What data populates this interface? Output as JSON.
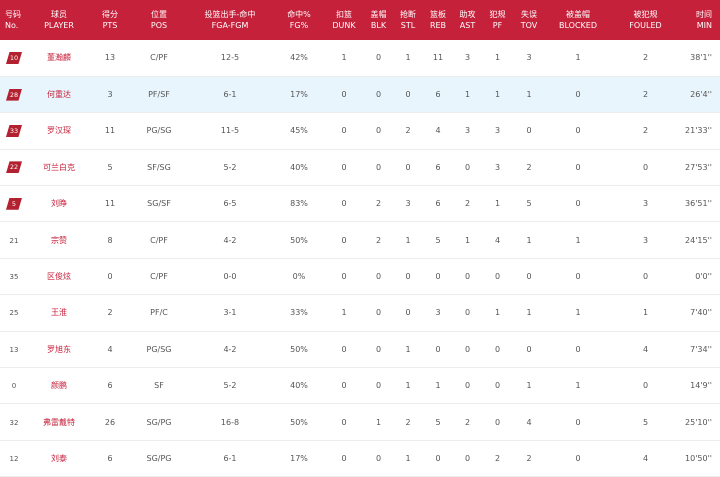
{
  "header": [
    {
      "zh": "号码",
      "en": "No."
    },
    {
      "zh": "球员",
      "en": "PLAYER"
    },
    {
      "zh": "得分",
      "en": "PTS"
    },
    {
      "zh": "位置",
      "en": "POS"
    },
    {
      "zh": "投篮出手-命中",
      "en": "FGA-FGM"
    },
    {
      "zh": "命中%",
      "en": "FG%"
    },
    {
      "zh": "扣篮",
      "en": "DUNK"
    },
    {
      "zh": "盖帽",
      "en": "BLK"
    },
    {
      "zh": "抢断",
      "en": "STL"
    },
    {
      "zh": "篮板",
      "en": "REB"
    },
    {
      "zh": "助攻",
      "en": "AST"
    },
    {
      "zh": "犯规",
      "en": "PF"
    },
    {
      "zh": "失误",
      "en": "TOV"
    },
    {
      "zh": "被盖帽",
      "en": "BLOCKED"
    },
    {
      "zh": "被犯规",
      "en": "FOULED"
    },
    {
      "zh": "时间",
      "en": "MIN"
    }
  ],
  "rows": [
    {
      "no": "10",
      "starter": true,
      "name": "董瀚麟",
      "pts": "13",
      "pos": "C/PF",
      "fga_fgm": "12-5",
      "fg_pct": "42%",
      "dunk": "1",
      "blk": "0",
      "stl": "1",
      "reb": "11",
      "ast": "3",
      "pf": "1",
      "tov": "3",
      "blocked": "1",
      "fouled": "2",
      "min": "38'1''"
    },
    {
      "no": "28",
      "starter": true,
      "name": "何重达",
      "pts": "3",
      "pos": "PF/SF",
      "fga_fgm": "6-1",
      "fg_pct": "17%",
      "dunk": "0",
      "blk": "0",
      "stl": "0",
      "reb": "6",
      "ast": "1",
      "pf": "1",
      "tov": "1",
      "blocked": "0",
      "fouled": "2",
      "min": "26'4''"
    },
    {
      "no": "33",
      "starter": true,
      "name": "罗汉琛",
      "pts": "11",
      "pos": "PG/SG",
      "fga_fgm": "11-5",
      "fg_pct": "45%",
      "dunk": "0",
      "blk": "0",
      "stl": "2",
      "reb": "4",
      "ast": "3",
      "pf": "3",
      "tov": "0",
      "blocked": "0",
      "fouled": "2",
      "min": "21'33''"
    },
    {
      "no": "22",
      "starter": true,
      "name": "可兰白克",
      "pts": "5",
      "pos": "SF/SG",
      "fga_fgm": "5-2",
      "fg_pct": "40%",
      "dunk": "0",
      "blk": "0",
      "stl": "0",
      "reb": "6",
      "ast": "0",
      "pf": "3",
      "tov": "2",
      "blocked": "0",
      "fouled": "0",
      "min": "27'53''"
    },
    {
      "no": "5",
      "starter": true,
      "name": "刘睁",
      "pts": "11",
      "pos": "SG/SF",
      "fga_fgm": "6-5",
      "fg_pct": "83%",
      "dunk": "0",
      "blk": "2",
      "stl": "3",
      "reb": "6",
      "ast": "2",
      "pf": "1",
      "tov": "5",
      "blocked": "0",
      "fouled": "3",
      "min": "36'51''"
    },
    {
      "no": "21",
      "starter": false,
      "name": "宗赞",
      "pts": "8",
      "pos": "C/PF",
      "fga_fgm": "4-2",
      "fg_pct": "50%",
      "dunk": "0",
      "blk": "2",
      "stl": "1",
      "reb": "5",
      "ast": "1",
      "pf": "4",
      "tov": "1",
      "blocked": "1",
      "fouled": "3",
      "min": "24'15''"
    },
    {
      "no": "35",
      "starter": false,
      "name": "区俊炫",
      "pts": "0",
      "pos": "C/PF",
      "fga_fgm": "0-0",
      "fg_pct": "0%",
      "dunk": "0",
      "blk": "0",
      "stl": "0",
      "reb": "0",
      "ast": "0",
      "pf": "0",
      "tov": "0",
      "blocked": "0",
      "fouled": "0",
      "min": "0'0''"
    },
    {
      "no": "25",
      "starter": false,
      "name": "王淮",
      "pts": "2",
      "pos": "PF/C",
      "fga_fgm": "3-1",
      "fg_pct": "33%",
      "dunk": "1",
      "blk": "0",
      "stl": "0",
      "reb": "3",
      "ast": "0",
      "pf": "1",
      "tov": "1",
      "blocked": "1",
      "fouled": "1",
      "min": "7'40''"
    },
    {
      "no": "13",
      "starter": false,
      "name": "罗旭东",
      "pts": "4",
      "pos": "PG/SG",
      "fga_fgm": "4-2",
      "fg_pct": "50%",
      "dunk": "0",
      "blk": "0",
      "stl": "1",
      "reb": "0",
      "ast": "0",
      "pf": "0",
      "tov": "0",
      "blocked": "0",
      "fouled": "4",
      "min": "7'34''"
    },
    {
      "no": "0",
      "starter": false,
      "name": "颜鹏",
      "pts": "6",
      "pos": "SF",
      "fga_fgm": "5-2",
      "fg_pct": "40%",
      "dunk": "0",
      "blk": "0",
      "stl": "1",
      "reb": "1",
      "ast": "0",
      "pf": "0",
      "tov": "1",
      "blocked": "1",
      "fouled": "0",
      "min": "14'9''"
    },
    {
      "no": "32",
      "starter": false,
      "name": "弗雷戴特",
      "pts": "26",
      "pos": "SG/PG",
      "fga_fgm": "16-8",
      "fg_pct": "50%",
      "dunk": "0",
      "blk": "1",
      "stl": "2",
      "reb": "5",
      "ast": "2",
      "pf": "0",
      "tov": "4",
      "blocked": "0",
      "fouled": "5",
      "min": "25'10''"
    },
    {
      "no": "12",
      "starter": false,
      "name": "刘泰",
      "pts": "6",
      "pos": "SG/PG",
      "fga_fgm": "6-1",
      "fg_pct": "17%",
      "dunk": "0",
      "blk": "0",
      "stl": "1",
      "reb": "0",
      "ast": "0",
      "pf": "2",
      "tov": "2",
      "blocked": "0",
      "fouled": "4",
      "min": "10'50''"
    }
  ],
  "colors": {
    "accent": "#c6213b",
    "badge": "#b3202f",
    "highlight_row": "#e9f5fc"
  }
}
